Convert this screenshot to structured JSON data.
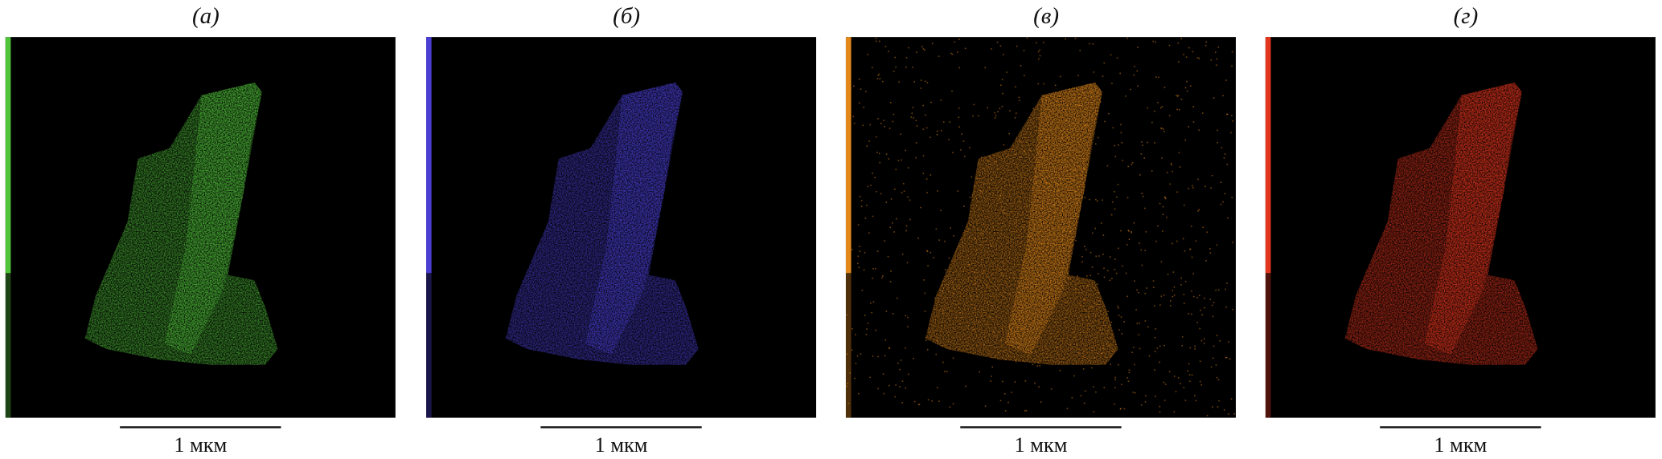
{
  "panels": [
    {
      "label": "(а)",
      "scale_label": "1 мкм",
      "color": "#52c43c"
    },
    {
      "label": "(б)",
      "scale_label": "1 мкм",
      "color": "#4a3fd2"
    },
    {
      "label": "(в)",
      "scale_label": "1 мкм",
      "color": "#e3891c"
    },
    {
      "label": "(г)",
      "scale_label": "1 мкм",
      "color": "#e3361f"
    }
  ]
}
